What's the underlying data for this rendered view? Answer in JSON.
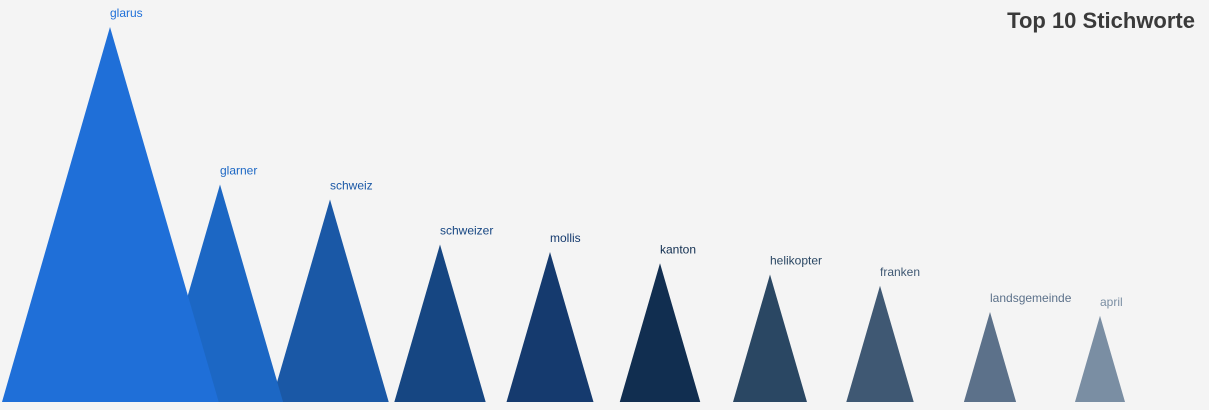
{
  "chart_data": {
    "type": "bar",
    "title": "Top 10 Stichworte",
    "categories": [
      "glarus",
      "glarner",
      "schweiz",
      "schweizer",
      "mollis",
      "kanton",
      "helikopter",
      "franken",
      "landsgemeinde",
      "april"
    ],
    "values": [
      100,
      58,
      54,
      42,
      40,
      37,
      34,
      31,
      24,
      23
    ],
    "colors": [
      "#1f6fd8",
      "#1c67c4",
      "#1a58a6",
      "#164682",
      "#153a6e",
      "#112e50",
      "#2a4763",
      "#3f5873",
      "#5c718a",
      "#7a8ea3"
    ],
    "label_colors": [
      "#1f6fd8",
      "#1c67c4",
      "#1a58a6",
      "#164682",
      "#153a6e",
      "#112e50",
      "#2a4763",
      "#3f5873",
      "#5c718a",
      "#7a8ea3"
    ]
  }
}
